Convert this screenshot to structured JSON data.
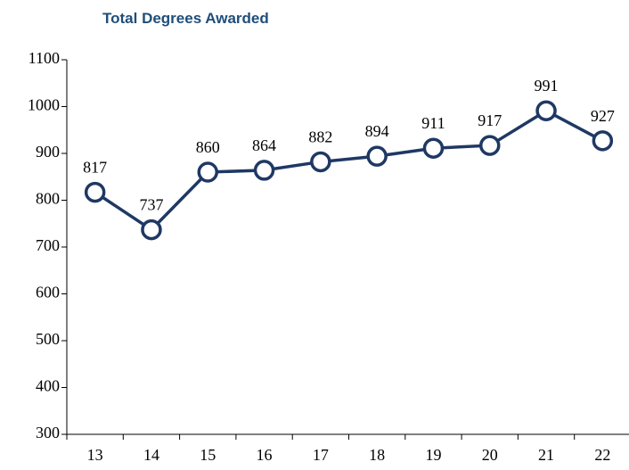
{
  "chart_data": {
    "type": "line",
    "title": "Total Degrees Awarded",
    "categories": [
      "13",
      "14",
      "15",
      "16",
      "17",
      "18",
      "19",
      "20",
      "21",
      "22"
    ],
    "values": [
      817,
      737,
      860,
      864,
      882,
      894,
      911,
      917,
      991,
      927
    ],
    "color": "#1f3864",
    "ylim": [
      300,
      1100
    ],
    "yticks": [
      300,
      400,
      500,
      600,
      700,
      800,
      900,
      1000,
      1100
    ]
  }
}
